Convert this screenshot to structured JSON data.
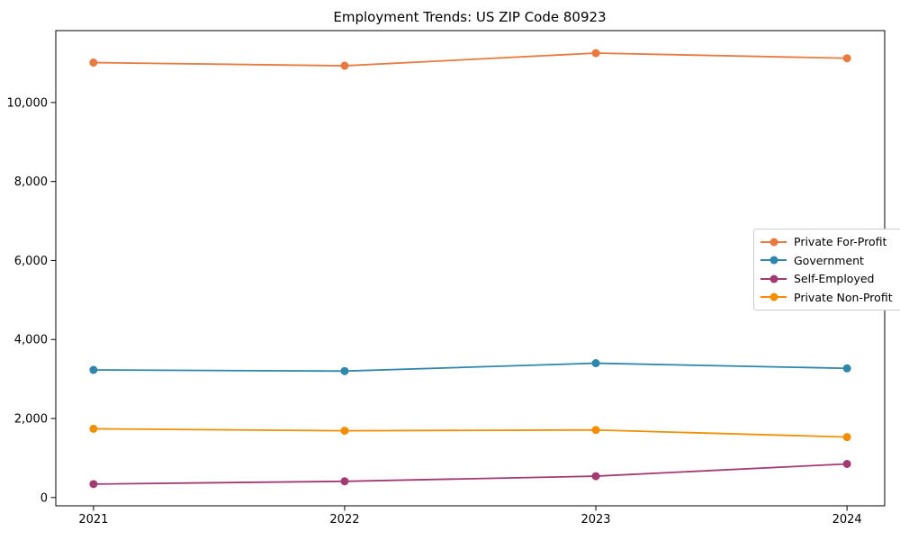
{
  "figure": {
    "background": "#ffffff",
    "axes_color": "#000000"
  },
  "chart_data": {
    "type": "line",
    "title": "Employment Trends: US ZIP Code 80923",
    "x": [
      2021,
      2022,
      2023,
      2024
    ],
    "x_tick_labels": [
      "2021",
      "2022",
      "2023",
      "2024"
    ],
    "xlim": [
      2020.85,
      2024.15
    ],
    "ylim": [
      -210,
      11820
    ],
    "y_ticks": [
      0,
      2000,
      4000,
      6000,
      8000,
      10000
    ],
    "y_tick_labels": [
      "0",
      "2,000",
      "4,000",
      "6,000",
      "8,000",
      "10,000"
    ],
    "xlabel": "",
    "ylabel": "",
    "grid": false,
    "legend_position": "center right",
    "series": [
      {
        "name": "Private For-Profit",
        "color": "#e8793f",
        "values": [
          11010,
          10930,
          11250,
          11120
        ]
      },
      {
        "name": "Government",
        "color": "#2e86ab",
        "values": [
          3230,
          3200,
          3400,
          3270
        ]
      },
      {
        "name": "Self-Employed",
        "color": "#a23b72",
        "values": [
          340,
          410,
          540,
          850
        ]
      },
      {
        "name": "Private Non-Profit",
        "color": "#f18f01",
        "values": [
          1740,
          1690,
          1710,
          1530
        ]
      }
    ]
  }
}
